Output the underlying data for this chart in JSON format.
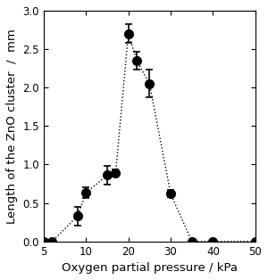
{
  "x_data": [
    4,
    6,
    9,
    10,
    15,
    17,
    20,
    22,
    25,
    30,
    35,
    40,
    50
  ],
  "y_data": [
    0.0,
    0.0,
    0.33,
    0.63,
    0.86,
    0.89,
    2.7,
    2.35,
    2.05,
    0.62,
    0.0,
    0.0,
    0.0
  ],
  "yerr_data": [
    0,
    0,
    0.12,
    0.07,
    0.12,
    0.04,
    0.12,
    0.12,
    0.18,
    0.05,
    0,
    0,
    0
  ],
  "xtick_vals": [
    5,
    10,
    20,
    30,
    40,
    50
  ],
  "yticks": [
    0.0,
    0.5,
    1.0,
    1.5,
    2.0,
    2.5,
    3.0
  ],
  "xlim": [
    3,
    55
  ],
  "ylim": [
    0.0,
    3.0
  ],
  "xlabel": "Oxygen partial pressure / kPa",
  "ylabel": "Length of the ZnO cluster  /  mm",
  "marker_size": 7,
  "marker_color": "black",
  "line_style": ":",
  "line_color": "black",
  "background_color": "#ffffff",
  "label_fontsize": 9.5,
  "tick_labelsize": 8.5
}
